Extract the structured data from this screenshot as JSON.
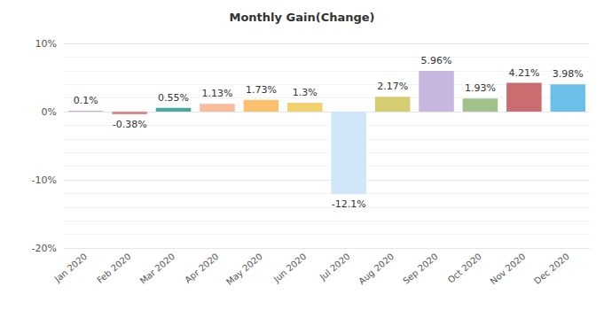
{
  "chart_data": {
    "type": "bar",
    "title": "Monthly Gain(Change)",
    "categories": [
      "Jan 2020",
      "Feb 2020",
      "Mar 2020",
      "Apr 2020",
      "May 2020",
      "Jun 2020",
      "Jul 2020",
      "Aug 2020",
      "Sep 2020",
      "Oct 2020",
      "Nov 2020",
      "Dec 2020"
    ],
    "values": [
      0.1,
      -0.38,
      0.55,
      1.13,
      1.73,
      1.3,
      -12.1,
      2.17,
      5.96,
      1.93,
      4.21,
      3.98
    ],
    "value_labels": [
      "0.1%",
      "-0.38%",
      "0.55%",
      "1.13%",
      "1.73%",
      "1.3%",
      "-12.1%",
      "2.17%",
      "5.96%",
      "1.93%",
      "4.21%",
      "3.98%"
    ],
    "colors": [
      "#b98bc9",
      "#e08a8a",
      "#4aa8a2",
      "#f9bc9c",
      "#fbc16e",
      "#f2d270",
      "#d2e6fa",
      "#d5cd72",
      "#c7b6dd",
      "#a2c08c",
      "#c96d70",
      "#6cbfe8"
    ],
    "ylim": [
      -20,
      10
    ],
    "yticks": [
      {
        "value": -20,
        "label": "-20%"
      },
      {
        "value": -10,
        "label": "-10%"
      },
      {
        "value": 0,
        "label": "0%"
      },
      {
        "value": 10,
        "label": "10%"
      }
    ],
    "grid": true,
    "data_labels": true
  }
}
